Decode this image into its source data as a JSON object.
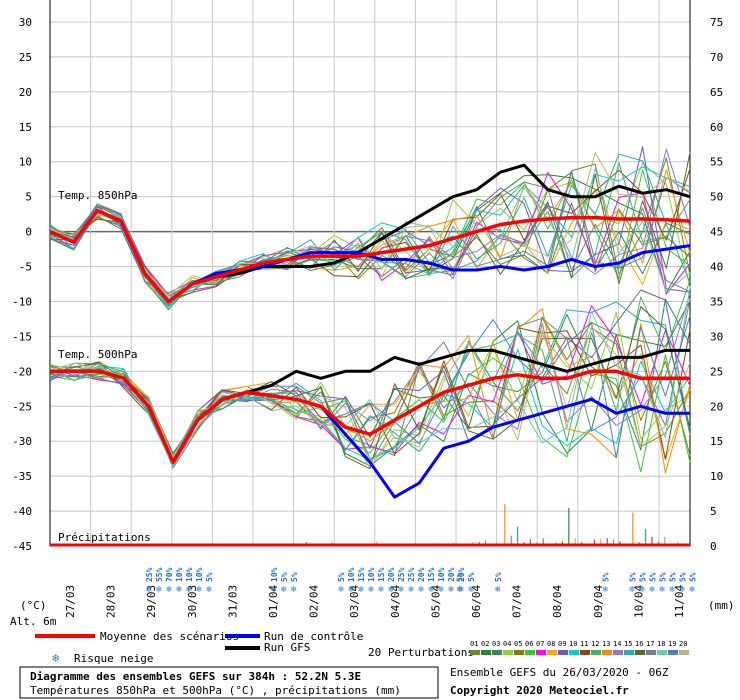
{
  "chart_data": {
    "type": "line",
    "x": [
      "27/03",
      "28/03",
      "29/03",
      "30/03",
      "31/03",
      "01/04",
      "02/04",
      "03/04",
      "04/04",
      "05/04",
      "06/04",
      "07/04",
      "08/04",
      "09/04",
      "10/04",
      "11/04"
    ],
    "left_axis": {
      "ticks": [
        30,
        25,
        20,
        15,
        10,
        5,
        0,
        -5,
        -10,
        -15,
        -20,
        -25,
        -30,
        -35,
        -40,
        -45
      ],
      "unit_label": "(°C)",
      "ylim": [
        -45,
        30
      ]
    },
    "right_axis": {
      "ticks": [
        75,
        70,
        65,
        60,
        55,
        50,
        45,
        40,
        35,
        30,
        25,
        20,
        15,
        10,
        5,
        0
      ],
      "unit_label": "(mm)"
    },
    "alt_label": "Alt. 6m",
    "panel_labels": {
      "t850": "Temp. 850hPa",
      "t500": "Temp. 500hPa",
      "precip": "Précipitations"
    },
    "series": {
      "t850_mean": {
        "name": "Moyenne des scénarios",
        "color": "#ff0000",
        "values": [
          0,
          -1.5,
          3,
          1.5,
          -6,
          -10,
          -7.5,
          -6.5,
          -5.5,
          -4.5,
          -4,
          -3.5,
          -3.5,
          -3.5,
          -3,
          -2.5,
          -2,
          -1,
          0,
          1,
          1.5,
          1.8,
          2,
          2,
          1.8,
          1.8,
          1.7,
          1.5
        ]
      },
      "t850_control": {
        "name": "Run de contrôle",
        "color": "#0000ff",
        "values": [
          0,
          -1.5,
          3,
          1.5,
          -6,
          -10,
          -7.5,
          -6,
          -5.5,
          -5,
          -4,
          -3,
          -3,
          -3,
          -4,
          -4,
          -4.5,
          -5.5,
          -5.5,
          -5,
          -5.5,
          -5,
          -4,
          -5,
          -4.5,
          -3,
          -2.5,
          -2
        ]
      },
      "t850_gfs": {
        "name": "Run GFS",
        "color": "#000000",
        "values": [
          0,
          -1.5,
          3,
          1.5,
          -6,
          -10,
          -7.5,
          -6.5,
          -6,
          -5,
          -5,
          -5,
          -4.5,
          -3,
          -1,
          1,
          3,
          5,
          6,
          8.5,
          9.5,
          6,
          5,
          5,
          6.5,
          5.5,
          6,
          5
        ]
      },
      "t500_mean": {
        "values": [
          -20,
          -20,
          -20,
          -21,
          -25,
          -33,
          -27,
          -24,
          -23,
          -23.5,
          -24,
          -25,
          -28,
          -29,
          -27,
          -25,
          -23,
          -22,
          -21,
          -20.5,
          -21,
          -21,
          -20,
          -20,
          -21,
          -21,
          -21
        ]
      },
      "t500_control": {
        "values": [
          -20,
          -20,
          -20,
          -21,
          -25,
          -33,
          -27,
          -24,
          -23,
          -23.5,
          -24,
          -25,
          -29,
          -33,
          -38,
          -36,
          -31,
          -30,
          -28,
          -27,
          -26,
          -25,
          -24,
          -26,
          -25,
          -26,
          -26
        ]
      },
      "t500_gfs": {
        "values": [
          -20,
          -20,
          -20,
          -21,
          -25,
          -33,
          -27,
          -24,
          -23,
          -22,
          -20,
          -21,
          -20,
          -20,
          -18,
          -19,
          -18,
          -17,
          -17,
          -18,
          -19,
          -20,
          -19,
          -18,
          -18,
          -17,
          -17
        ]
      },
      "perturbations_label": "20 Perturbations",
      "perturbation_numbers": [
        "01",
        "02",
        "03",
        "04",
        "05",
        "06",
        "07",
        "08",
        "09",
        "10",
        "11",
        "12",
        "13",
        "14",
        "15",
        "16",
        "17",
        "18",
        "19",
        "20"
      ],
      "perturbation_colors": [
        "#6b8e23",
        "#228b22",
        "#2e8b57",
        "#9acd32",
        "#808000",
        "#32cd32",
        "#ff00ff",
        "#ffa500",
        "#6a5acd",
        "#00ced1",
        "#8b4513",
        "#3cb371",
        "#ff8c00",
        "#9370db",
        "#20b2aa",
        "#556b2f",
        "#708090",
        "#66cdaa",
        "#4682b4",
        "#bdb76b"
      ]
    },
    "snow_groups": [
      {
        "pos": 0.155,
        "labels": [
          "25%",
          "55%",
          "70%",
          "10%",
          "10%",
          "10%",
          "5%"
        ]
      },
      {
        "pos": 0.35,
        "labels": [
          "10%",
          "5%",
          "5%"
        ]
      },
      {
        "pos": 0.455,
        "labels": [
          "5%",
          "10%",
          "15%",
          "10%",
          "15%",
          "20%",
          "25%",
          "25%",
          "20%",
          "15%",
          "10%",
          "20%",
          "20%",
          "5%"
        ]
      },
      {
        "pos": 0.64,
        "labels": [
          "5%"
        ]
      },
      {
        "pos": 0.7,
        "labels": [
          "5%"
        ]
      },
      {
        "pos": 0.868,
        "labels": [
          "5%"
        ]
      },
      {
        "pos": 0.91,
        "labels": [
          "5%",
          "5%",
          "5%",
          "5%",
          "5%",
          "5%",
          "5%"
        ]
      }
    ],
    "legend": {
      "mean": "Moyenne des scénarios",
      "control": "Run de contrôle",
      "gfs": "Run GFS",
      "snow": "Risque neige"
    },
    "footer": {
      "title": "Diagramme des ensembles GEFS sur 384h : 52.2N 5.3E",
      "subtitle": "Températures 850hPa et 500hPa (°C) , précipitations (mm)",
      "run": "Ensemble GEFS du 26/03/2020 - 06Z",
      "copyright": "Copyright 2020 Meteociel.fr"
    }
  }
}
